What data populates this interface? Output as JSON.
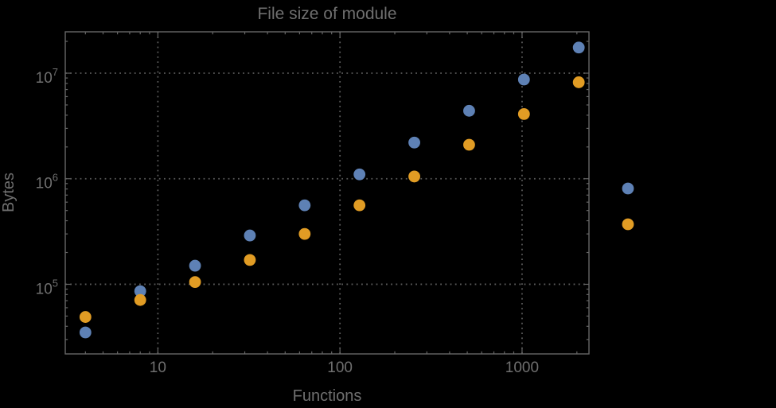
{
  "colors": {
    "background": "#000000",
    "text": "#6f6f6f",
    "frame": "#666666",
    "grid": "#5a5a5a",
    "series1": "#5e81b5",
    "series2": "#e19c24"
  },
  "chart_data": {
    "type": "scatter",
    "title": "File size of module",
    "xlabel": "Functions",
    "ylabel": "Bytes",
    "x_scale": "log",
    "y_scale": "log",
    "xlim": [
      3.1,
      2330
    ],
    "ylim": [
      21900,
      24650000
    ],
    "grid": "dotted lines at decade ticks, both axes",
    "legend_position": "right-outside-frame, markers only (no visible labels)",
    "x_ticks": [
      {
        "value": 10,
        "label": "10"
      },
      {
        "value": 100,
        "label": "100"
      },
      {
        "value": 1000,
        "label": "1000"
      }
    ],
    "y_ticks": [
      {
        "value": 100000,
        "base": "10",
        "exponent": "5"
      },
      {
        "value": 1000000,
        "base": "10",
        "exponent": "6"
      },
      {
        "value": 10000000,
        "base": "10",
        "exponent": "7"
      }
    ],
    "x": [
      4,
      8,
      16,
      32,
      64,
      128,
      256,
      512,
      1024,
      2048
    ],
    "series": [
      {
        "name": "series-1",
        "color": "#5e81b5",
        "values": [
          35000,
          86000,
          150000,
          290000,
          560000,
          1100000,
          2200000,
          4400000,
          8700000,
          17500000
        ]
      },
      {
        "name": "series-2",
        "color": "#e19c24",
        "values": [
          49000,
          71000,
          105000,
          170000,
          300000,
          560000,
          1050000,
          2100000,
          4100000,
          8200000
        ]
      }
    ],
    "legend": {
      "entries": [
        {
          "series": "series-1",
          "color": "#5e81b5",
          "label": ""
        },
        {
          "series": "series-2",
          "color": "#e19c24",
          "label": ""
        }
      ]
    }
  }
}
